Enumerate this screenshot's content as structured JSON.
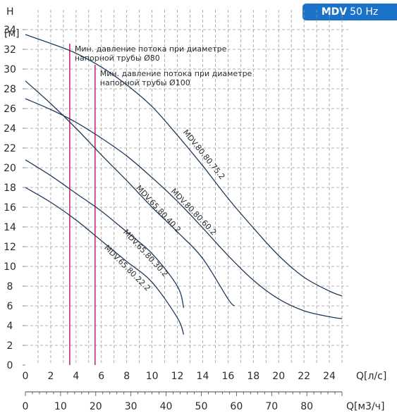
{
  "badge": {
    "model": "MDV",
    "freq": "50 Hz",
    "color": "#1a73c9"
  },
  "chart_data": {
    "type": "line",
    "y_title": "H",
    "y_unit": "[м]",
    "x_label": "Q[л/с]",
    "x2_label": "Q[м3/ч]",
    "xlim": [
      0,
      25.5
    ],
    "ylim": [
      0,
      36
    ],
    "x_ticks": [
      0,
      2,
      4,
      6,
      8,
      10,
      12,
      14,
      16,
      18,
      20,
      22,
      24
    ],
    "y_ticks": [
      0,
      2,
      4,
      6,
      8,
      10,
      12,
      14,
      16,
      18,
      20,
      22,
      24,
      26,
      28,
      30,
      32,
      34
    ],
    "x2_ticks": [
      0,
      10,
      20,
      30,
      40,
      50,
      60,
      70,
      80
    ],
    "grid": true,
    "curve_color": "#1f3a5c",
    "marker_color": "#cc2a7a",
    "series": [
      {
        "name": "MDV.80.80.75.2",
        "points": [
          [
            0,
            33.5
          ],
          [
            2,
            32.6
          ],
          [
            4,
            31.6
          ],
          [
            6,
            30.2
          ],
          [
            8,
            28.4
          ],
          [
            10,
            26.2
          ],
          [
            12,
            23.3
          ],
          [
            14,
            20.2
          ],
          [
            16,
            16.9
          ],
          [
            18,
            13.9
          ],
          [
            20,
            11.1
          ],
          [
            22,
            8.9
          ],
          [
            24,
            7.5
          ],
          [
            25,
            7.0
          ]
        ]
      },
      {
        "name": "MDV.80.80.60.2",
        "points": [
          [
            0,
            27.0
          ],
          [
            2,
            25.9
          ],
          [
            4,
            24.6
          ],
          [
            6,
            23.0
          ],
          [
            8,
            21.2
          ],
          [
            10,
            19.0
          ],
          [
            12,
            16.6
          ],
          [
            14,
            13.9
          ],
          [
            16,
            11.1
          ],
          [
            18,
            8.6
          ],
          [
            20,
            6.7
          ],
          [
            22,
            5.5
          ],
          [
            24,
            4.9
          ],
          [
            25,
            4.7
          ]
        ]
      },
      {
        "name": "MDV.65.80.40.2",
        "points": [
          [
            0,
            28.8
          ],
          [
            2,
            26.5
          ],
          [
            4,
            24.0
          ],
          [
            6,
            21.3
          ],
          [
            8,
            18.7
          ],
          [
            10,
            16.0
          ],
          [
            12,
            13.5
          ],
          [
            14,
            10.8
          ],
          [
            16,
            6.7
          ],
          [
            16.5,
            6.0
          ]
        ]
      },
      {
        "name": "MDV.65.80.30.2",
        "points": [
          [
            0,
            20.8
          ],
          [
            2,
            19.2
          ],
          [
            4,
            17.4
          ],
          [
            6,
            15.6
          ],
          [
            8,
            13.5
          ],
          [
            10,
            11.3
          ],
          [
            12,
            8.0
          ],
          [
            12.5,
            5.8
          ]
        ]
      },
      {
        "name": "MDV.65.80.22.2",
        "points": [
          [
            0,
            18.0
          ],
          [
            2,
            16.5
          ],
          [
            4,
            14.7
          ],
          [
            6,
            12.6
          ],
          [
            8,
            10.5
          ],
          [
            10,
            8.4
          ],
          [
            12,
            4.8
          ],
          [
            12.5,
            3.1
          ]
        ]
      }
    ],
    "markers": [
      {
        "x": 3.5,
        "text": [
          "Мин. давление потока при диаметре",
          "напорной трубы Ø80"
        ]
      },
      {
        "x": 5.5,
        "text": [
          "Мин. давление потока при диаметре",
          "напорной трубы Ø100"
        ]
      }
    ]
  }
}
